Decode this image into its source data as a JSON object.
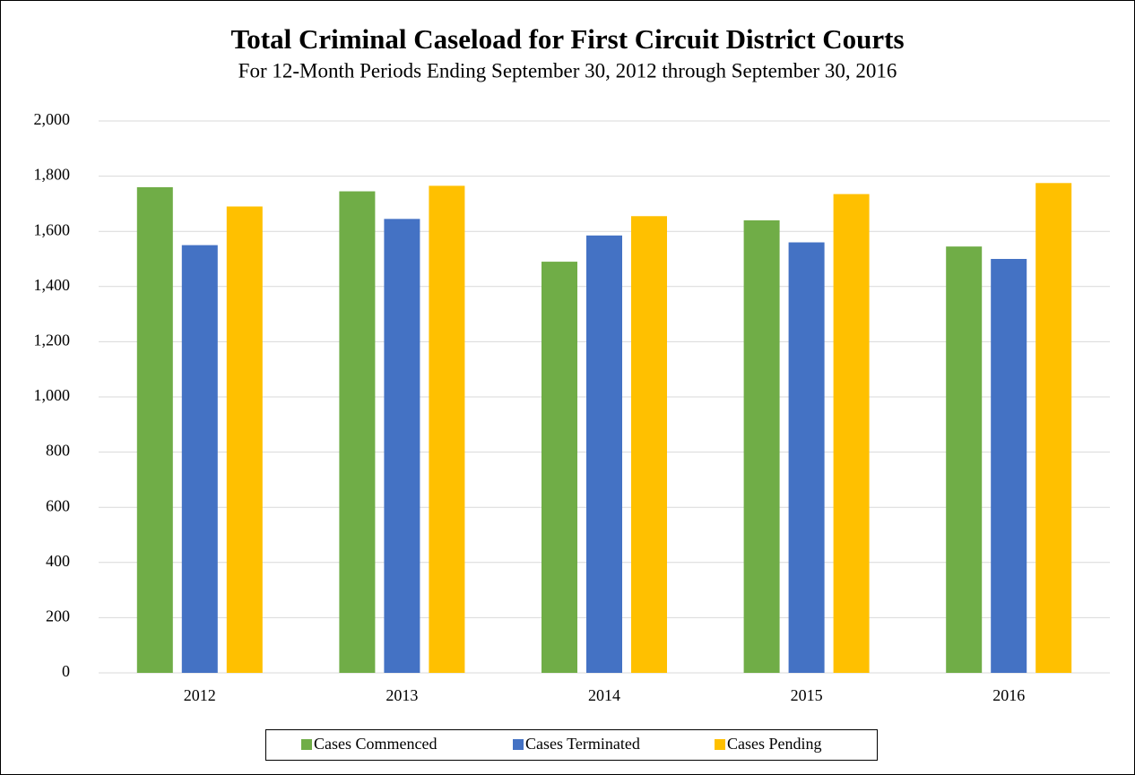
{
  "chart_data": {
    "type": "bar",
    "title": "Total Criminal Caseload for First Circuit District Courts",
    "subtitle": "For 12-Month Periods Ending September 30, 2012 through September 30, 2016",
    "categories": [
      "2012",
      "2013",
      "2014",
      "2015",
      "2016"
    ],
    "series": [
      {
        "name": "Cases Commenced",
        "color": "#70ad47",
        "values": [
          1760,
          1745,
          1490,
          1640,
          1545
        ]
      },
      {
        "name": "Cases Terminated",
        "color": "#4472c4",
        "values": [
          1550,
          1645,
          1585,
          1560,
          1500
        ]
      },
      {
        "name": "Cases Pending",
        "color": "#ffc000",
        "values": [
          1690,
          1765,
          1655,
          1735,
          1775
        ]
      }
    ],
    "ylim": [
      0,
      2000
    ],
    "yticks": [
      0,
      200,
      400,
      600,
      800,
      {
        "value": 1000,
        "label": "1,000"
      },
      {
        "value": 1200,
        "label": "1,200"
      },
      {
        "value": 1400,
        "label": "1,400"
      },
      {
        "value": 1600,
        "label": "1,600"
      },
      {
        "value": 1800,
        "label": "1,800"
      },
      {
        "value": 2000,
        "label": "2,000"
      }
    ],
    "grid": true,
    "legend": "bottom"
  }
}
